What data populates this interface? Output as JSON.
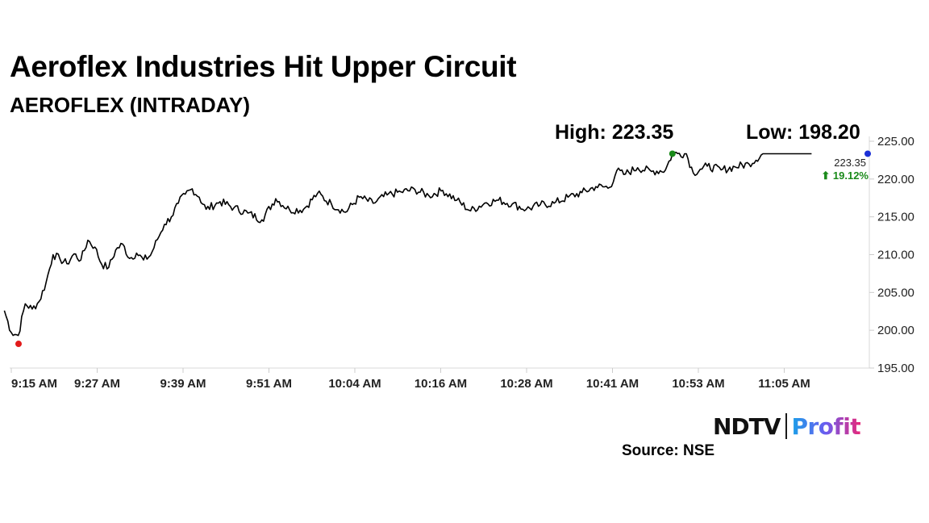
{
  "header": {
    "title": "Aeroflex Industries Hit Upper Circuit",
    "subtitle": "AEROFLEX (INTRADAY)",
    "high_label": "High: 223.35",
    "low_label": "Low: 198.20"
  },
  "footer": {
    "logo_ndtv": "NDTV",
    "logo_profit": "Profit",
    "source": "Source: NSE"
  },
  "chart_data": {
    "type": "line",
    "title": "AEROFLEX (INTRADAY)",
    "series": [
      {
        "x": [
          "9:14",
          "9:15",
          "9:16",
          "9:17",
          "9:18",
          "9:19",
          "9:20",
          "9:21",
          "9:22",
          "9:23",
          "9:24",
          "9:25",
          "9:26",
          "9:27",
          "9:28",
          "9:29",
          "9:30",
          "9:31",
          "9:32",
          "9:33",
          "9:34",
          "9:35",
          "9:36",
          "9:37",
          "9:38",
          "9:39",
          "9:40",
          "9:41",
          "9:42",
          "9:43",
          "9:45",
          "9:47",
          "9:49",
          "9:51",
          "9:53",
          "9:55",
          "9:57",
          "9:59",
          "10:01",
          "10:03",
          "10:05",
          "10:07",
          "10:09",
          "10:11",
          "10:13",
          "10:15",
          "10:17",
          "10:19",
          "10:21",
          "10:23",
          "10:25",
          "10:27",
          "10:29",
          "10:31",
          "10:33",
          "10:35",
          "10:37",
          "10:39",
          "10:41",
          "10:42",
          "10:43",
          "10:45",
          "10:47",
          "10:49",
          "10:50",
          "10:51",
          "10:52",
          "10:53",
          "10:54",
          "10:55",
          "10:57",
          "10:59",
          "11:01",
          "11:03",
          "11:05",
          "11:07",
          "11:09",
          "11:10"
        ],
        "values": [
          202.6,
          199.7,
          199.3,
          203.5,
          202.8,
          203.8,
          206.3,
          210.0,
          209.4,
          208.8,
          210.1,
          209.3,
          211.9,
          211.0,
          208.7,
          208.3,
          210.6,
          211.4,
          209.5,
          210.2,
          209.3,
          209.9,
          212.0,
          214.0,
          215.0,
          216.8,
          218.0,
          218.7,
          217.6,
          216.0,
          217.0,
          216.2,
          215.5,
          214.6,
          217.4,
          215.9,
          216.0,
          218.1,
          216.7,
          215.6,
          217.6,
          216.8,
          217.9,
          218.3,
          218.6,
          217.8,
          218.5,
          217.2,
          215.8,
          216.8,
          217.2,
          216.7,
          216.0,
          216.6,
          216.8,
          217.6,
          218.2,
          219.0,
          218.9,
          221.1,
          220.6,
          221.5,
          221.0,
          221.2,
          223.35,
          223.4,
          223.35,
          220.8,
          221.3,
          221.7,
          221.2,
          221.6,
          222.0,
          223.35,
          223.35,
          223.35,
          223.35,
          223.35
        ]
      }
    ],
    "x_tick_labels": [
      "9:15 AM",
      "9:27 AM",
      "9:39 AM",
      "9:51 AM",
      "10:04 AM",
      "10:16 AM",
      "10:28 AM",
      "10:41 AM",
      "10:53 AM",
      "11:05 AM"
    ],
    "y_tick_labels": [
      "195.00",
      "200.00",
      "205.00",
      "210.00",
      "215.00",
      "220.00",
      "225.00"
    ],
    "ylim": [
      195,
      225
    ],
    "y_axis_position": "right",
    "grid": false,
    "high": 223.35,
    "low": 198.2,
    "last_value_label": "223.35",
    "change_label": "⬆ 19.12%",
    "colors": {
      "line": "#000000",
      "high_marker": "#1a8a1a",
      "low_marker": "#e21b1b",
      "last_marker": "#1b2fd6",
      "change_text": "#1a8a1a"
    }
  }
}
